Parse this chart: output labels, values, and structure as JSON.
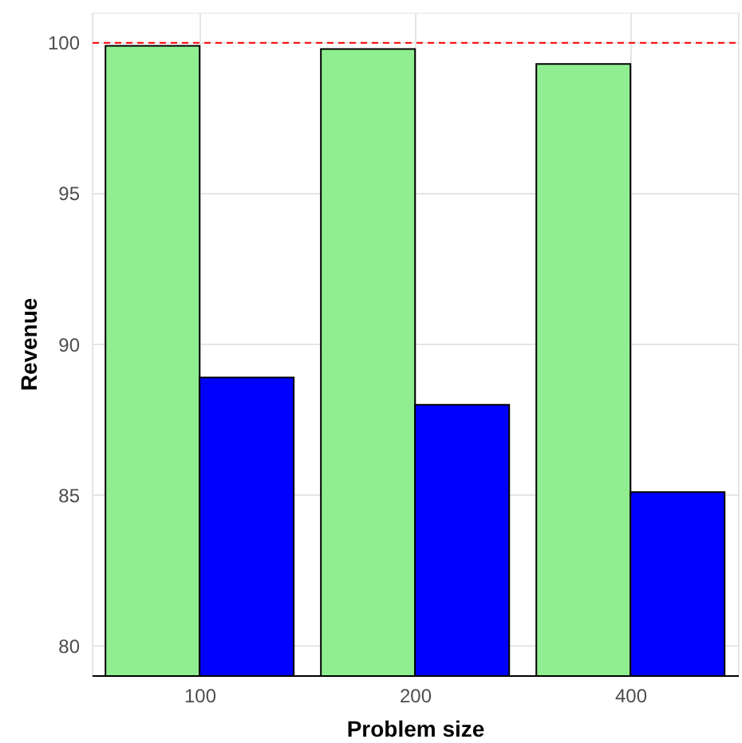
{
  "chart_data": {
    "type": "bar",
    "xlabel": "Problem size",
    "ylabel": "Revenue",
    "categories": [
      "100",
      "200",
      "400"
    ],
    "series": [
      {
        "color": "#90ee90",
        "values": [
          99.9,
          99.8,
          99.3
        ]
      },
      {
        "color": "#0000ff",
        "values": [
          88.9,
          88.0,
          85.1
        ]
      }
    ],
    "ylim": [
      79,
      101
    ],
    "yticks": [
      80,
      85,
      90,
      95,
      100
    ],
    "grid": true,
    "legend": false,
    "ref_lines": [
      {
        "axis": "y",
        "value": 100,
        "color": "#ff0000",
        "line_style": "dashed"
      }
    ]
  }
}
